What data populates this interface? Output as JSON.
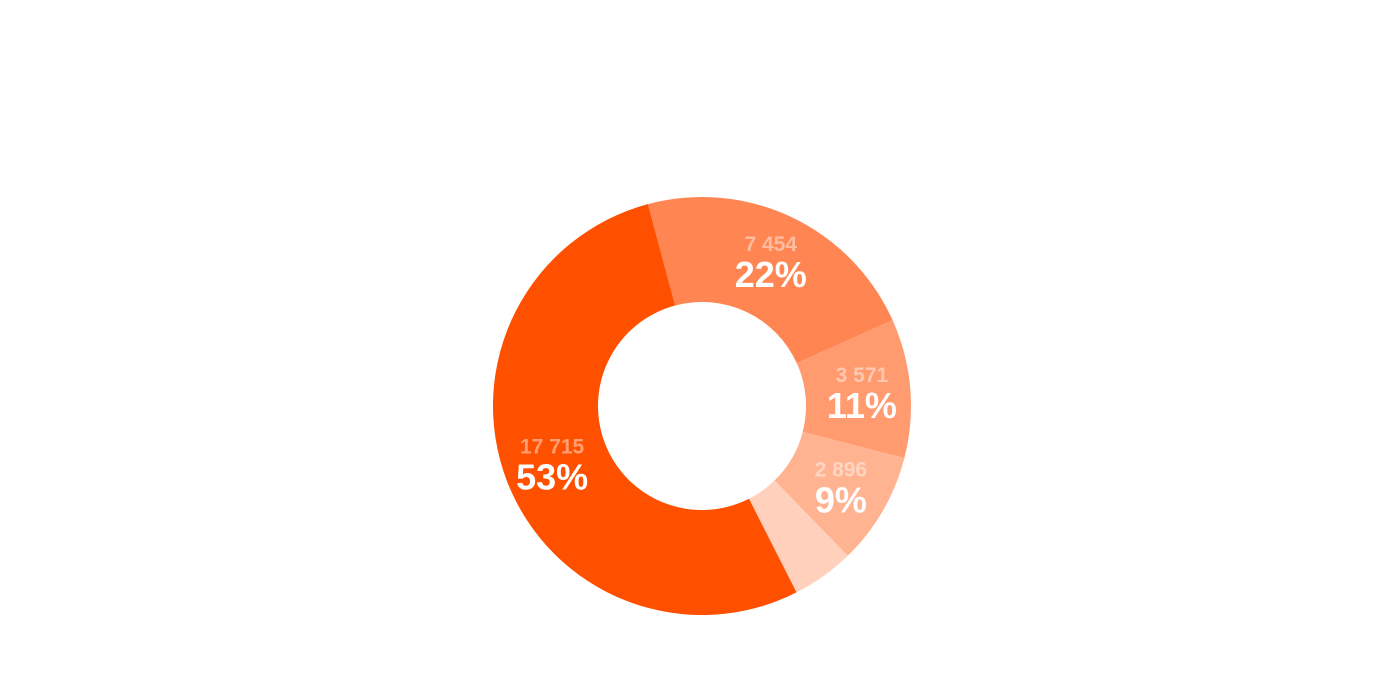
{
  "chart_data": {
    "type": "pie",
    "variant": "donut",
    "labels_shown": "value and percent",
    "slices": [
      {
        "value": 7454,
        "value_label": "7 454",
        "percent_label": "22%",
        "color": "#FF8652"
      },
      {
        "value": 3571,
        "value_label": "3 571",
        "percent_label": "11%",
        "color": "#FF9B6F"
      },
      {
        "value": 2896,
        "value_label": "2 896",
        "percent_label": "9%",
        "color": "#FFB390"
      },
      {
        "value": 1600,
        "value_label": "",
        "percent_label": "",
        "color": "#FFD0BB"
      },
      {
        "value": 17715,
        "value_label": "17 715",
        "percent_label": "53%",
        "color": "#FF5000"
      }
    ]
  }
}
